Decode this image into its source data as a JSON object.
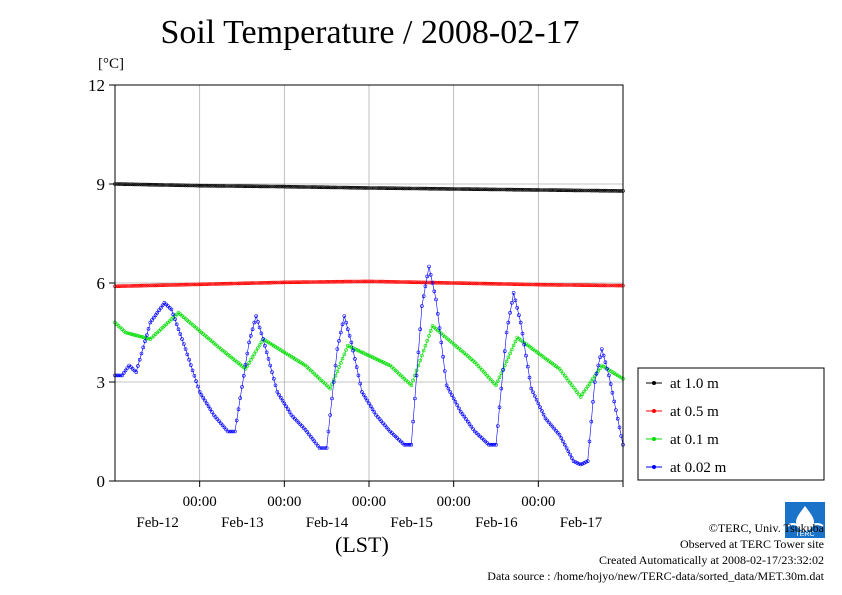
{
  "title": "Soil Temperature / 2008-02-17",
  "unit_label": "[°C]",
  "footer": {
    "copyright": "©TERC, Univ. Tsukuba",
    "observed": "Observed at TERC Tower site",
    "created": "Created Automatically at 2008-02-17/23:32:02",
    "source": "Data source : /home/hojyo/new/TERC-data/sorted_data/MET.30m.dat"
  },
  "logo_text": "TERC",
  "chart_data": {
    "type": "line",
    "title": "Soil Temperature / 2008-02-17",
    "xlabel": "(LST)",
    "ylabel": "[°C]",
    "ylim": [
      0,
      12
    ],
    "yticks": [
      0,
      3,
      6,
      9,
      12
    ],
    "xrange_hours": [
      0,
      144
    ],
    "xticks": [
      {
        "hour": 24,
        "time": "00:00",
        "date": "Feb-12"
      },
      {
        "hour": 48,
        "time": "00:00",
        "date": "Feb-13"
      },
      {
        "hour": 72,
        "time": "00:00",
        "date": "Feb-14"
      },
      {
        "hour": 96,
        "time": "00:00",
        "date": "Feb-15"
      },
      {
        "hour": 120,
        "time": "00:00",
        "date": "Feb-16"
      },
      {
        "hour": 144,
        "time": "",
        "date": "Feb-17"
      }
    ],
    "grid": true,
    "legend_position": "right",
    "series": [
      {
        "name": "at 1.0 m",
        "color": "#000000",
        "points": [
          [
            0,
            9.0
          ],
          [
            24,
            8.95
          ],
          [
            48,
            8.92
          ],
          [
            72,
            8.88
          ],
          [
            96,
            8.85
          ],
          [
            120,
            8.82
          ],
          [
            144,
            8.79
          ]
        ]
      },
      {
        "name": "at 0.5 m",
        "color": "#ff0000",
        "points": [
          [
            0,
            5.9
          ],
          [
            24,
            5.96
          ],
          [
            48,
            6.02
          ],
          [
            72,
            6.05
          ],
          [
            96,
            6.0
          ],
          [
            120,
            5.95
          ],
          [
            144,
            5.92
          ]
        ]
      },
      {
        "name": "at 0.1 m",
        "color": "#00dd00",
        "points": [
          [
            0,
            4.8
          ],
          [
            3,
            4.5
          ],
          [
            10,
            4.3
          ],
          [
            18,
            5.1
          ],
          [
            30,
            4.0
          ],
          [
            37,
            3.4
          ],
          [
            42,
            4.3
          ],
          [
            54,
            3.5
          ],
          [
            61,
            2.8
          ],
          [
            66,
            4.1
          ],
          [
            78,
            3.5
          ],
          [
            84,
            2.9
          ],
          [
            90,
            4.7
          ],
          [
            102,
            3.6
          ],
          [
            108,
            2.9
          ],
          [
            114,
            4.35
          ],
          [
            126,
            3.4
          ],
          [
            132,
            2.55
          ],
          [
            138,
            3.5
          ],
          [
            144,
            3.1
          ]
        ]
      },
      {
        "name": "at 0.02 m",
        "color": "#0000ff",
        "points": [
          [
            0,
            3.2
          ],
          [
            2,
            3.2
          ],
          [
            4,
            3.5
          ],
          [
            6,
            3.3
          ],
          [
            10,
            4.8
          ],
          [
            14,
            5.4
          ],
          [
            16,
            5.2
          ],
          [
            20,
            4.0
          ],
          [
            24,
            2.7
          ],
          [
            28,
            2.0
          ],
          [
            32,
            1.5
          ],
          [
            34,
            1.5
          ],
          [
            38,
            4.2
          ],
          [
            40,
            5.0
          ],
          [
            42,
            4.3
          ],
          [
            46,
            2.7
          ],
          [
            50,
            2.0
          ],
          [
            54,
            1.55
          ],
          [
            58,
            1.0
          ],
          [
            60,
            1.0
          ],
          [
            63,
            4.0
          ],
          [
            65,
            5.0
          ],
          [
            67,
            4.2
          ],
          [
            70,
            2.7
          ],
          [
            74,
            2.0
          ],
          [
            78,
            1.5
          ],
          [
            82,
            1.1
          ],
          [
            84,
            1.1
          ],
          [
            87,
            5.3
          ],
          [
            89,
            6.5
          ],
          [
            91,
            5.5
          ],
          [
            94,
            2.9
          ],
          [
            98,
            2.1
          ],
          [
            102,
            1.5
          ],
          [
            106,
            1.1
          ],
          [
            108,
            1.1
          ],
          [
            111,
            4.5
          ],
          [
            113,
            5.7
          ],
          [
            115,
            4.8
          ],
          [
            118,
            2.8
          ],
          [
            122,
            1.9
          ],
          [
            126,
            1.4
          ],
          [
            130,
            0.6
          ],
          [
            132,
            0.5
          ],
          [
            134,
            0.6
          ],
          [
            136,
            3.0
          ],
          [
            138,
            4.0
          ],
          [
            140,
            3.2
          ],
          [
            144,
            1.1
          ]
        ]
      }
    ]
  }
}
